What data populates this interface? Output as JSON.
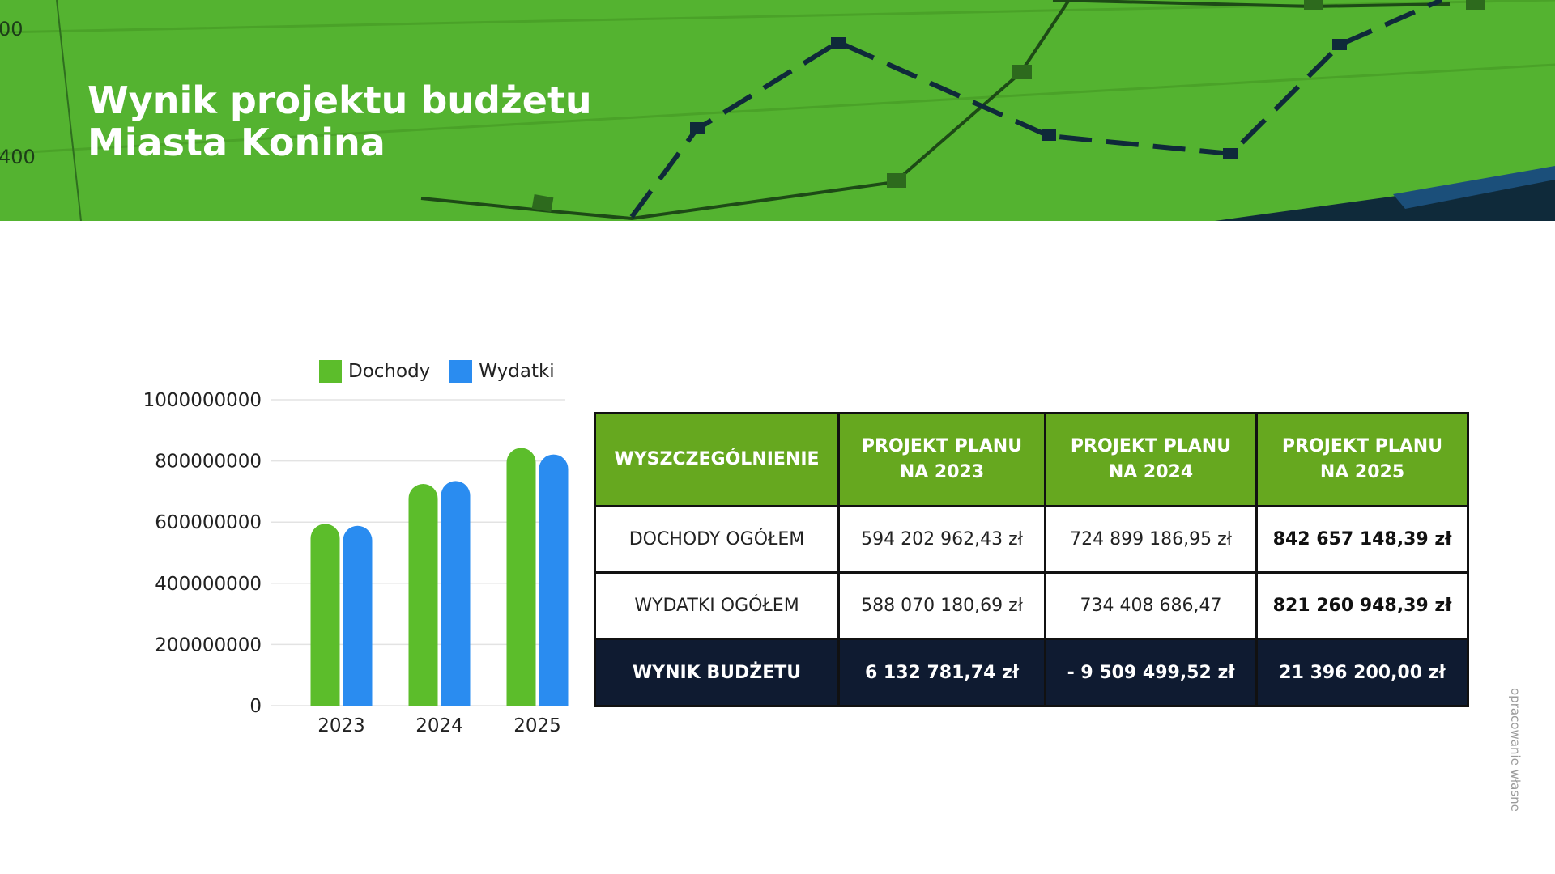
{
  "banner": {
    "title_line1": "Wynik projektu budżetu",
    "title_line2": "Miasta Konina",
    "bg_axis_labels": [
      "00",
      "400"
    ],
    "colors": {
      "background": "#54b330",
      "line": "#1d4a16",
      "dash": "#0f2a3a"
    }
  },
  "chart_data": {
    "type": "bar",
    "categories": [
      "2023",
      "2024",
      "2025"
    ],
    "series": [
      {
        "name": "Dochody",
        "color": "#5cbd2b",
        "values": [
          594202962.43,
          724899186.95,
          842657148.39
        ]
      },
      {
        "name": "Wydatki",
        "color": "#2a8cf0",
        "values": [
          588070180.69,
          734408686.47,
          821260948.39
        ]
      }
    ],
    "yticks": [
      "1000000000",
      "800000000",
      "600000000",
      "400000000",
      "200000000",
      "0"
    ],
    "ylim": [
      0,
      1000000000
    ],
    "grid": true,
    "legend": "top"
  },
  "table": {
    "headers": [
      {
        "line1": "WYSZCZEGÓLNIENIE",
        "line2": ""
      },
      {
        "line1": "PROJEKT PLANU",
        "line2": "NA 2023"
      },
      {
        "line1": "PROJEKT PLANU",
        "line2": "NA 2024"
      },
      {
        "line1": "PROJEKT PLANU",
        "line2": "NA 2025"
      }
    ],
    "rows": [
      [
        "DOCHODY OGÓŁEM",
        "594 202 962,43 zł",
        "724 899 186,95 zł",
        "842 657 148,39 zł"
      ],
      [
        "WYDATKI OGÓŁEM",
        "588 070 180,69 zł",
        "734 408 686,47",
        "821 260 948,39 zł"
      ],
      [
        "WYNIK BUDŻETU",
        "6 132 781,74 zł",
        "- 9 509 499,52 zł",
        "21 396 200,00 zł"
      ]
    ],
    "colors": {
      "header": "#66a81f",
      "result_row": "#0f1b31"
    }
  },
  "side_note": "opracowanie własne"
}
